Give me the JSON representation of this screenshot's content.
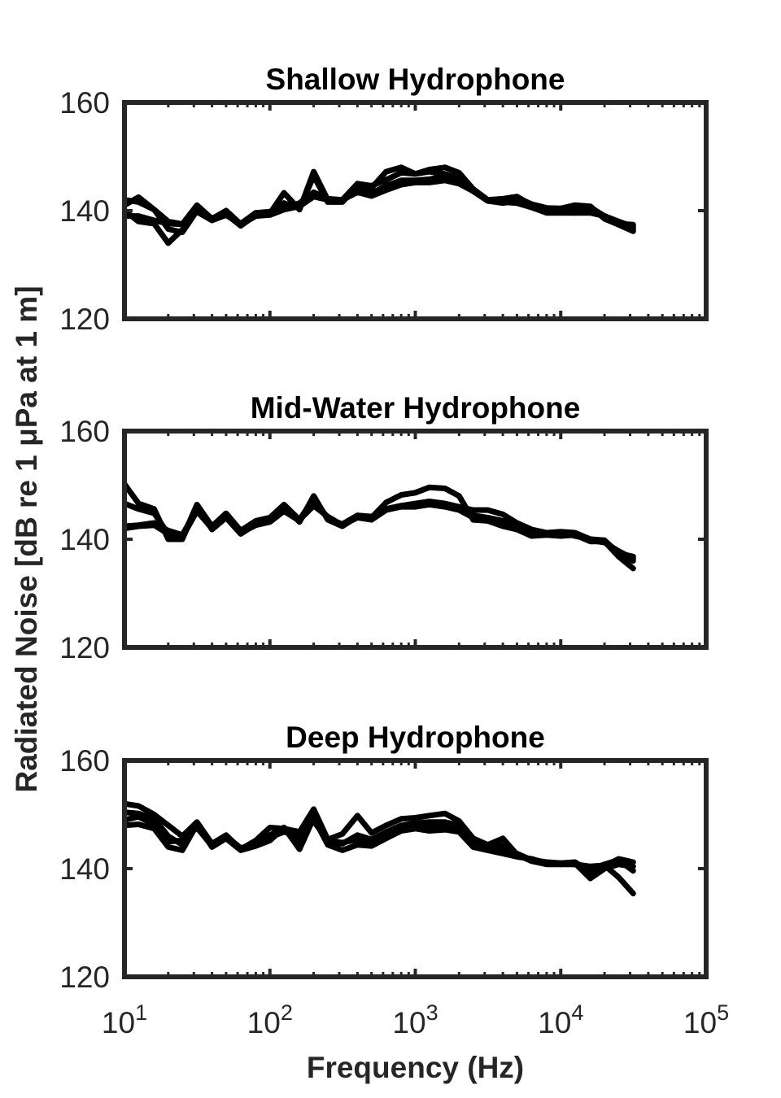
{
  "chart_data": {
    "type": "line",
    "xlabel": "Frequency (Hz)",
    "ylabel": "Radiated Noise [dB re 1 μPa at 1 m]",
    "x_scale": "log",
    "xlim": [
      10,
      100000
    ],
    "x_ticks": [
      {
        "base": "10",
        "exp": "1"
      },
      {
        "base": "10",
        "exp": "2"
      },
      {
        "base": "10",
        "exp": "3"
      },
      {
        "base": "10",
        "exp": "4"
      },
      {
        "base": "10",
        "exp": "5"
      }
    ],
    "line_color": "#000000",
    "axis_color": "#262626",
    "grid": false,
    "panels": [
      {
        "title": "Shallow Hydrophone",
        "ylim": [
          120,
          160
        ],
        "y_ticks": [
          "120",
          "140",
          "160"
        ],
        "series": [
          {
            "x": [
              10,
              12.5,
              16,
              20,
              25,
              31.5,
              40,
              50,
              63,
              80,
              100,
              125,
              160,
              200,
              250,
              315,
              400,
              500,
              630,
              800,
              1000,
              1250,
              1600,
              2000,
              2500,
              3150,
              4000,
              5000,
              6300,
              8000,
              10000,
              12500,
              16000,
              20000,
              25000,
              31500
            ],
            "y": [
              141,
              142.5,
              140.2,
              138,
              137.5,
              141,
              138.5,
              140,
              137.5,
              139.6,
              139.5,
              143.3,
              140.2,
              147.2,
              142,
              142,
              145,
              144.6,
              145.7,
              147,
              146.8,
              147.2,
              146.8,
              146,
              143.6,
              141.8,
              142,
              142.4,
              141.2,
              140.5,
              140.4,
              140.6,
              140.6,
              139,
              138,
              137
            ]
          },
          {
            "x": [
              10,
              12.5,
              16,
              20,
              25,
              31.5,
              40,
              50,
              63,
              80,
              100,
              125,
              160,
              200,
              250,
              315,
              400,
              500,
              630,
              800,
              1000,
              1250,
              1600,
              2000,
              2500,
              3150,
              4000,
              5000,
              6300,
              8000,
              10000,
              12500,
              16000,
              20000,
              25000,
              31500
            ],
            "y": [
              140,
              138,
              137.6,
              134,
              136.5,
              140.2,
              138.4,
              139.4,
              137.2,
              139.2,
              139.4,
              141.4,
              140.4,
              146.4,
              141.6,
              141.6,
              144.5,
              144.2,
              147.2,
              148,
              146.8,
              147.6,
              148,
              147,
              144,
              141.8,
              141.4,
              141.8,
              140.8,
              139.8,
              140.4,
              141,
              140.8,
              138.5,
              137.4,
              136.2
            ]
          },
          {
            "x": [
              10,
              12.5,
              16,
              20,
              25,
              31.5,
              40,
              50,
              63,
              80,
              100,
              125,
              160,
              200,
              250,
              315,
              400,
              500,
              630,
              800,
              1000,
              1250,
              1600,
              2000,
              2500,
              3150,
              4000,
              5000,
              6300,
              8000,
              10000,
              12500,
              16000,
              20000,
              25000,
              31500
            ],
            "y": [
              139,
              139,
              138.2,
              137.6,
              137.5,
              139.8,
              138.2,
              139.2,
              137.4,
              139,
              139.2,
              140.2,
              140.8,
              142.6,
              142,
              142,
              143.4,
              142.7,
              143.8,
              144.8,
              145.2,
              145.2,
              145.6,
              145,
              143.6,
              141.8,
              141.6,
              141.4,
              140.6,
              139.6,
              139.6,
              139.6,
              139.6,
              139,
              137.8,
              136.6
            ]
          },
          {
            "x": [
              10,
              12.5,
              16,
              20,
              25,
              31.5,
              40,
              50,
              63,
              80,
              100,
              125,
              160,
              200,
              250,
              315,
              400,
              500,
              630,
              800,
              1000,
              1250,
              1600,
              2000,
              2500,
              3150,
              4000,
              5000,
              6300,
              8000,
              10000,
              12500,
              16000,
              20000,
              25000,
              31500
            ],
            "y": [
              142,
              141.6,
              140.2,
              136.6,
              136,
              140,
              138.6,
              139.6,
              137.6,
              139.6,
              139.8,
              140.6,
              141.4,
              143.4,
              142.2,
              142,
              143.6,
              143.2,
              144.6,
              145.6,
              145.6,
              145.8,
              146.4,
              145.6,
              144,
              142,
              142.2,
              142.6,
              141,
              139.8,
              139.8,
              139.6,
              140.2,
              138.8,
              137.6,
              137.4
            ]
          }
        ]
      },
      {
        "title": "Mid-Water Hydrophone",
        "ylim": [
          120,
          160
        ],
        "y_ticks": [
          "120",
          "140",
          "160"
        ],
        "series": [
          {
            "x": [
              10,
              12.5,
              16,
              20,
              25,
              31.5,
              40,
              50,
              63,
              80,
              100,
              125,
              160,
              200,
              250,
              315,
              400,
              500,
              630,
              800,
              1000,
              1250,
              1600,
              2000,
              2500,
              3150,
              4000,
              5000,
              6300,
              8000,
              10000,
              12500,
              16000,
              20000,
              25000,
              31500
            ],
            "y": [
              150.2,
              146.6,
              145.6,
              140,
              140,
              146.2,
              141.8,
              144,
              141,
              142.8,
              143.6,
              146,
              143.2,
              148,
              143.6,
              142.4,
              144.2,
              144,
              146.8,
              148.2,
              148.6,
              149.6,
              149.4,
              148,
              143.6,
              143.4,
              142.4,
              141.8,
              140.6,
              140.8,
              140.6,
              140.8,
              139.6,
              139.6,
              136.8,
              134.6
            ]
          },
          {
            "x": [
              10,
              12.5,
              16,
              20,
              25,
              31.5,
              40,
              50,
              63,
              80,
              100,
              125,
              160,
              200,
              250,
              315,
              400,
              500,
              630,
              800,
              1000,
              1250,
              1600,
              2000,
              2500,
              3150,
              4000,
              5000,
              6300,
              8000,
              10000,
              12500,
              16000,
              20000,
              25000,
              31500
            ],
            "y": [
              142,
              142.4,
              142.6,
              141,
              140.4,
              145.2,
              142,
              144.4,
              141.4,
              142.8,
              143.4,
              145.2,
              143.6,
              146.2,
              144.2,
              142.6,
              144.4,
              144.2,
              145.6,
              146.2,
              146.6,
              147,
              146.6,
              146,
              145.4,
              145.4,
              144.6,
              143,
              141.8,
              141.2,
              141.4,
              141.2,
              140,
              139.6,
              137.6,
              136
            ]
          },
          {
            "x": [
              10,
              12.5,
              16,
              20,
              25,
              31.5,
              40,
              50,
              63,
              80,
              100,
              125,
              160,
              200,
              250,
              315,
              400,
              500,
              630,
              800,
              1000,
              1250,
              1600,
              2000,
              2500,
              3150,
              4000,
              5000,
              6300,
              8000,
              10000,
              12500,
              16000,
              20000,
              25000,
              31500
            ],
            "y": [
              146.6,
              145.6,
              144.8,
              141,
              140.2,
              146.4,
              142.4,
              144.8,
              141.6,
              143.4,
              144,
              146.4,
              143.6,
              147.6,
              143.8,
              142.8,
              144.4,
              143.8,
              145.6,
              146.2,
              146,
              146.4,
              146,
              145.4,
              144,
              143.4,
              143,
              142.2,
              141.2,
              141.2,
              141.2,
              140.6,
              140,
              139.8,
              137.4,
              136.8
            ]
          },
          {
            "x": [
              10,
              12.5,
              16,
              20,
              25,
              31.5,
              40,
              50,
              63,
              80,
              100,
              125,
              160,
              200,
              250,
              315,
              400,
              500,
              630,
              800,
              1000,
              1250,
              1600,
              2000,
              2500,
              3150,
              4000,
              5000,
              6300,
              8000,
              10000,
              12500,
              16000,
              20000,
              25000,
              31500
            ],
            "y": [
              142.4,
              142.6,
              143,
              141.6,
              140.8,
              145.6,
              142.2,
              144.6,
              141.2,
              142.6,
              143.2,
              145.2,
              143.4,
              147.2,
              144,
              142.6,
              144,
              143.6,
              145.4,
              146,
              146,
              146.8,
              146.2,
              145.6,
              144.4,
              144,
              143.4,
              142.8,
              141.4,
              141,
              141,
              140.8,
              139.8,
              139.4,
              137.8,
              136.4
            ]
          }
        ]
      },
      {
        "title": "Deep Hydrophone",
        "ylim": [
          120,
          160
        ],
        "y_ticks": [
          "120",
          "140",
          "160"
        ],
        "series": [
          {
            "x": [
              10,
              12.5,
              16,
              20,
              25,
              31.5,
              40,
              50,
              63,
              80,
              100,
              125,
              160,
              200,
              250,
              315,
              400,
              500,
              630,
              800,
              1000,
              1250,
              1600,
              2000,
              2500,
              3150,
              4000,
              5000,
              6300,
              8000,
              10000,
              12500,
              16000,
              20000,
              25000,
              31500
            ],
            "y": [
              152,
              151.6,
              150,
              148,
              146,
              148.6,
              144.6,
              146.2,
              143.6,
              145.2,
              147.6,
              147.4,
              146.8,
              151,
              145.4,
              146.4,
              149.8,
              146.6,
              148,
              149.2,
              149.4,
              149.8,
              150.2,
              148.8,
              145.6,
              144.4,
              145.6,
              142.6,
              141.4,
              141,
              141,
              140.8,
              140.4,
              140.6,
              138.4,
              135.4
            ]
          },
          {
            "x": [
              10,
              12.5,
              16,
              20,
              25,
              31.5,
              40,
              50,
              63,
              80,
              100,
              125,
              160,
              200,
              250,
              315,
              400,
              500,
              630,
              800,
              1000,
              1250,
              1600,
              2000,
              2500,
              3150,
              4000,
              5000,
              6300,
              8000,
              10000,
              12500,
              16000,
              20000,
              25000,
              31500
            ],
            "y": [
              148,
              148.2,
              147.4,
              144,
              143.4,
              148.2,
              144,
              145.6,
              143.4,
              144.2,
              145.2,
              147.6,
              143.6,
              149.4,
              144.4,
              143.4,
              144.4,
              144.2,
              145.6,
              147,
              147.4,
              147,
              147.2,
              146.8,
              144,
              143.4,
              142.8,
              142.2,
              141.8,
              141,
              140.8,
              141,
              138.2,
              140,
              140.8,
              140.4
            ]
          },
          {
            "x": [
              10,
              12.5,
              16,
              20,
              25,
              31.5,
              40,
              50,
              63,
              80,
              100,
              125,
              160,
              200,
              250,
              315,
              400,
              500,
              630,
              800,
              1000,
              1250,
              1600,
              2000,
              2500,
              3150,
              4000,
              5000,
              6300,
              8000,
              10000,
              12500,
              16000,
              20000,
              25000,
              31500
            ],
            "y": [
              150.4,
              150.2,
              149.2,
              146,
              144.4,
              148.4,
              144.4,
              146,
              143.8,
              144.6,
              146.2,
              147.6,
              145,
              150.2,
              145,
              144.6,
              146.2,
              145.4,
              146.8,
              148,
              148.4,
              148.6,
              148.6,
              148,
              144.8,
              144,
              144.4,
              142.6,
              141.4,
              140.8,
              140.8,
              140.8,
              139.8,
              140.8,
              141.6,
              139.6
            ]
          },
          {
            "x": [
              10,
              12.5,
              16,
              20,
              25,
              31.5,
              40,
              50,
              63,
              80,
              100,
              125,
              160,
              200,
              250,
              315,
              400,
              500,
              630,
              800,
              1000,
              1250,
              1600,
              2000,
              2500,
              3150,
              4000,
              5000,
              6300,
              8000,
              10000,
              12500,
              16000,
              20000,
              25000,
              31500
            ],
            "y": [
              149,
              149.6,
              148.2,
              145,
              145.2,
              147.6,
              144.2,
              145.8,
              143.6,
              144.8,
              145.8,
              146.8,
              146,
              148.8,
              145.2,
              144.8,
              145.4,
              145,
              146.2,
              147.4,
              147.8,
              148,
              148.2,
              147.2,
              144.6,
              143.8,
              143.8,
              142.8,
              141.6,
              141.2,
              141,
              141.2,
              139.4,
              140.4,
              141.8,
              141.2
            ]
          }
        ]
      }
    ]
  }
}
